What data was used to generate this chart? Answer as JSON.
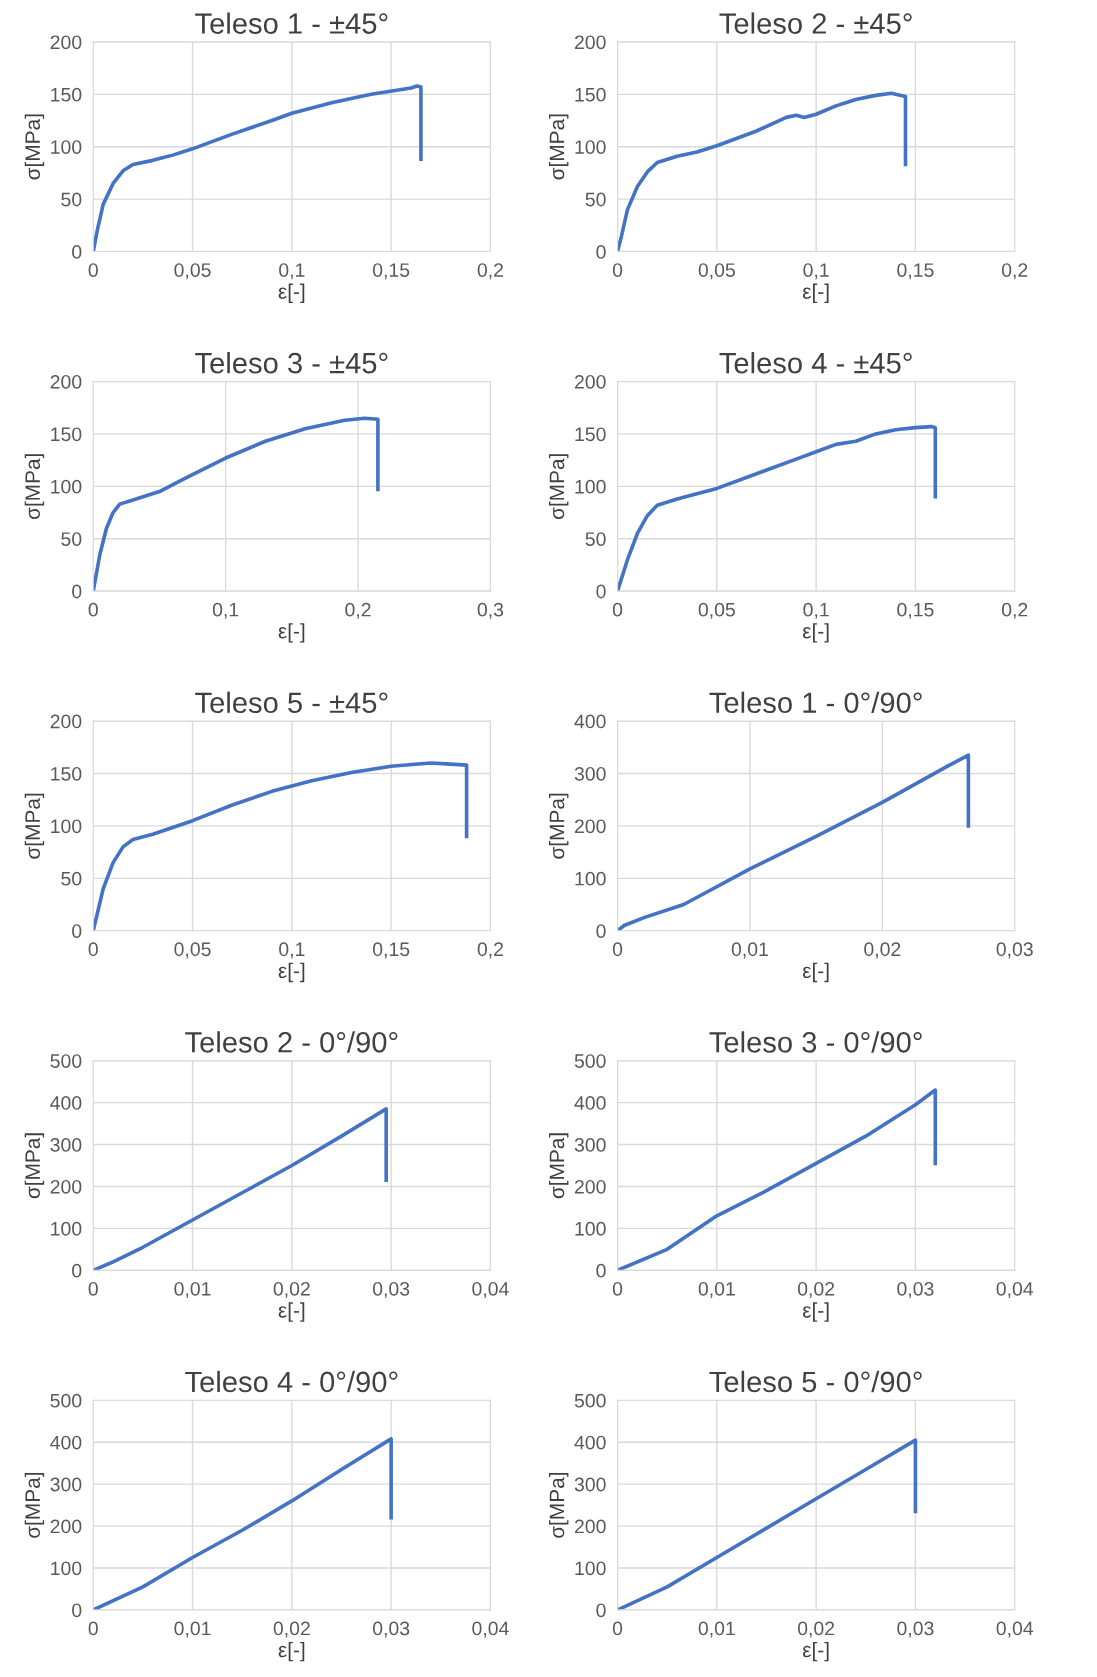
{
  "chart_data": [
    {
      "type": "line",
      "title": "Teleso 1 - ±45°",
      "xlabel": "ε[-]",
      "ylabel": "σ[MPa]",
      "grid": true,
      "xlim": [
        0,
        0.2
      ],
      "xticks": [
        0,
        {
          "value": 0.05,
          "label": "0,05"
        },
        {
          "value": 0.1,
          "label": "0,1"
        },
        {
          "value": 0.15,
          "label": "0,15"
        },
        {
          "value": 0.2,
          "label": "0,2"
        }
      ],
      "ylim": [
        0,
        200
      ],
      "yticks": [
        0,
        50,
        100,
        150,
        200
      ],
      "series": [
        {
          "color": "#4472c4",
          "x": [
            0,
            0.002,
            0.005,
            0.01,
            0.015,
            0.02,
            0.03,
            0.04,
            0.05,
            0.07,
            0.09,
            0.1,
            0.12,
            0.14,
            0.16,
            0.163,
            0.165,
            0.165
          ],
          "values": [
            0,
            20,
            45,
            65,
            77,
            83,
            87,
            92,
            98,
            112,
            125,
            132,
            142,
            150,
            156,
            158,
            157,
            88
          ]
        }
      ]
    },
    {
      "type": "line",
      "title": "Teleso 2 - ±45°",
      "xlabel": "ε[-]",
      "ylabel": "σ[MPa]",
      "grid": true,
      "xlim": [
        0,
        0.2
      ],
      "xticks": [
        0,
        {
          "value": 0.05,
          "label": "0,05"
        },
        {
          "value": 0.1,
          "label": "0,1"
        },
        {
          "value": 0.15,
          "label": "0,15"
        },
        {
          "value": 0.2,
          "label": "0,2"
        }
      ],
      "ylim": [
        0,
        200
      ],
      "yticks": [
        0,
        50,
        100,
        150,
        200
      ],
      "series": [
        {
          "color": "#4472c4",
          "x": [
            0,
            0.002,
            0.005,
            0.01,
            0.015,
            0.02,
            0.03,
            0.04,
            0.05,
            0.07,
            0.085,
            0.09,
            0.094,
            0.1,
            0.11,
            0.12,
            0.13,
            0.138,
            0.14,
            0.145,
            0.145
          ],
          "values": [
            0,
            15,
            40,
            62,
            76,
            85,
            91,
            95,
            101,
            115,
            128,
            130,
            128,
            131,
            139,
            145,
            149,
            151,
            150,
            148,
            83
          ]
        }
      ]
    },
    {
      "type": "line",
      "title": "Teleso 3 - ±45°",
      "xlabel": "ε[-]",
      "ylabel": "σ[MPa]",
      "grid": true,
      "xlim": [
        0,
        0.3
      ],
      "xticks": [
        0,
        {
          "value": 0.1,
          "label": "0,1"
        },
        {
          "value": 0.2,
          "label": "0,2"
        },
        {
          "value": 0.3,
          "label": "0,3"
        }
      ],
      "ylim": [
        0,
        200
      ],
      "yticks": [
        0,
        50,
        100,
        150,
        200
      ],
      "series": [
        {
          "color": "#4472c4",
          "x": [
            0,
            0.005,
            0.01,
            0.015,
            0.02,
            0.03,
            0.05,
            0.07,
            0.1,
            0.13,
            0.16,
            0.19,
            0.205,
            0.215,
            0.215
          ],
          "values": [
            0,
            35,
            60,
            75,
            83,
            87,
            95,
            108,
            127,
            143,
            155,
            163,
            165,
            164,
            97
          ]
        }
      ]
    },
    {
      "type": "line",
      "title": "Teleso 4 - ±45°",
      "xlabel": "ε[-]",
      "ylabel": "σ[MPa]",
      "grid": true,
      "xlim": [
        0,
        0.2
      ],
      "xticks": [
        0,
        {
          "value": 0.05,
          "label": "0,05"
        },
        {
          "value": 0.1,
          "label": "0,1"
        },
        {
          "value": 0.15,
          "label": "0,15"
        },
        {
          "value": 0.2,
          "label": "0,2"
        }
      ],
      "ylim": [
        0,
        200
      ],
      "yticks": [
        0,
        50,
        100,
        150,
        200
      ],
      "series": [
        {
          "color": "#4472c4",
          "x": [
            0,
            0.005,
            0.01,
            0.015,
            0.02,
            0.03,
            0.05,
            0.07,
            0.09,
            0.1,
            0.11,
            0.12,
            0.13,
            0.14,
            0.15,
            0.158,
            0.16,
            0.16
          ],
          "values": [
            0,
            30,
            55,
            72,
            82,
            88,
            98,
            112,
            126,
            133,
            140,
            143,
            150,
            154,
            156,
            157,
            156,
            90
          ]
        }
      ]
    },
    {
      "type": "line",
      "title": "Teleso 5 - ±45°",
      "xlabel": "ε[-]",
      "ylabel": "σ[MPa]",
      "grid": true,
      "xlim": [
        0,
        0.2
      ],
      "xticks": [
        0,
        {
          "value": 0.05,
          "label": "0,05"
        },
        {
          "value": 0.1,
          "label": "0,1"
        },
        {
          "value": 0.15,
          "label": "0,15"
        },
        {
          "value": 0.2,
          "label": "0,2"
        }
      ],
      "ylim": [
        0,
        200
      ],
      "yticks": [
        0,
        50,
        100,
        150,
        200
      ],
      "series": [
        {
          "color": "#4472c4",
          "x": [
            0,
            0.005,
            0.01,
            0.015,
            0.02,
            0.03,
            0.05,
            0.07,
            0.09,
            0.1,
            0.11,
            0.13,
            0.15,
            0.17,
            0.18,
            0.188,
            0.188
          ],
          "values": [
            0,
            40,
            65,
            80,
            87,
            92,
            105,
            120,
            133,
            138,
            143,
            151,
            157,
            160,
            159,
            158,
            90
          ]
        }
      ]
    },
    {
      "type": "line",
      "title": "Teleso 1 - 0°/90°",
      "xlabel": "ε[-]",
      "ylabel": "σ[MPa]",
      "grid": true,
      "xlim": [
        0,
        0.03
      ],
      "xticks": [
        0,
        {
          "value": 0.01,
          "label": "0,01"
        },
        {
          "value": 0.02,
          "label": "0,02"
        },
        {
          "value": 0.03,
          "label": "0,03"
        }
      ],
      "ylim": [
        0,
        400
      ],
      "yticks": [
        0,
        100,
        200,
        300,
        400
      ],
      "series": [
        {
          "color": "#4472c4",
          "x": [
            0,
            0.0005,
            0.002,
            0.005,
            0.01,
            0.015,
            0.02,
            0.025,
            0.0265,
            0.0265
          ],
          "values": [
            0,
            10,
            25,
            50,
            118,
            180,
            245,
            315,
            335,
            200
          ]
        }
      ]
    },
    {
      "type": "line",
      "title": "Teleso 2 - 0°/90°",
      "xlabel": "ε[-]",
      "ylabel": "σ[MPa]",
      "grid": true,
      "xlim": [
        0,
        0.04
      ],
      "xticks": [
        0,
        {
          "value": 0.01,
          "label": "0,01"
        },
        {
          "value": 0.02,
          "label": "0,02"
        },
        {
          "value": 0.03,
          "label": "0,03"
        },
        {
          "value": 0.04,
          "label": "0,04"
        }
      ],
      "ylim": [
        0,
        500
      ],
      "yticks": [
        0,
        100,
        200,
        300,
        400,
        500
      ],
      "series": [
        {
          "color": "#4472c4",
          "x": [
            0,
            0.002,
            0.005,
            0.01,
            0.015,
            0.02,
            0.025,
            0.0295,
            0.0295
          ],
          "values": [
            0,
            20,
            55,
            120,
            185,
            250,
            320,
            385,
            215
          ]
        }
      ]
    },
    {
      "type": "line",
      "title": "Teleso 3 - 0°/90°",
      "xlabel": "ε[-]",
      "ylabel": "σ[MPa]",
      "grid": true,
      "xlim": [
        0,
        0.04
      ],
      "xticks": [
        0,
        {
          "value": 0.01,
          "label": "0,01"
        },
        {
          "value": 0.02,
          "label": "0,02"
        },
        {
          "value": 0.03,
          "label": "0,03"
        },
        {
          "value": 0.04,
          "label": "0,04"
        }
      ],
      "ylim": [
        0,
        500
      ],
      "yticks": [
        0,
        100,
        200,
        300,
        400,
        500
      ],
      "series": [
        {
          "color": "#4472c4",
          "x": [
            0,
            0.005,
            0.01,
            0.015,
            0.02,
            0.025,
            0.03,
            0.032,
            0.032
          ],
          "values": [
            0,
            50,
            130,
            190,
            255,
            320,
            395,
            430,
            255
          ]
        }
      ]
    },
    {
      "type": "line",
      "title": "Teleso 4 - 0°/90°",
      "xlabel": "ε[-]",
      "ylabel": "σ[MPa]",
      "grid": true,
      "xlim": [
        0,
        0.04
      ],
      "xticks": [
        0,
        {
          "value": 0.01,
          "label": "0,01"
        },
        {
          "value": 0.02,
          "label": "0,02"
        },
        {
          "value": 0.03,
          "label": "0,03"
        },
        {
          "value": 0.04,
          "label": "0,04"
        }
      ],
      "ylim": [
        0,
        500
      ],
      "yticks": [
        0,
        100,
        200,
        300,
        400,
        500
      ],
      "series": [
        {
          "color": "#4472c4",
          "x": [
            0,
            0.005,
            0.01,
            0.015,
            0.02,
            0.025,
            0.03,
            0.03
          ],
          "values": [
            0,
            55,
            125,
            190,
            260,
            335,
            408,
            220
          ]
        }
      ]
    },
    {
      "type": "line",
      "title": "Teleso 5 - 0°/90°",
      "xlabel": "ε[-]",
      "ylabel": "σ[MPa]",
      "grid": true,
      "xlim": [
        0,
        0.04
      ],
      "xticks": [
        0,
        {
          "value": 0.01,
          "label": "0,01"
        },
        {
          "value": 0.02,
          "label": "0,02"
        },
        {
          "value": 0.03,
          "label": "0,03"
        },
        {
          "value": 0.04,
          "label": "0,04"
        }
      ],
      "ylim": [
        0,
        500
      ],
      "yticks": [
        0,
        100,
        200,
        300,
        400,
        500
      ],
      "series": [
        {
          "color": "#4472c4",
          "x": [
            0,
            0.005,
            0.01,
            0.015,
            0.02,
            0.025,
            0.03,
            0.03
          ],
          "values": [
            0,
            55,
            125,
            195,
            265,
            335,
            405,
            235
          ]
        }
      ]
    }
  ]
}
